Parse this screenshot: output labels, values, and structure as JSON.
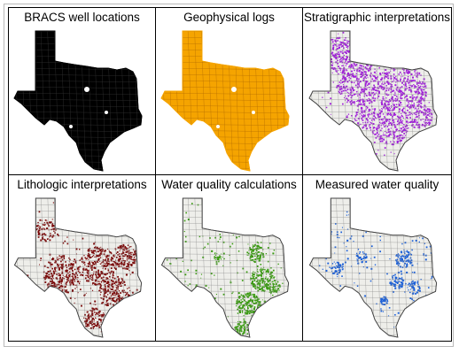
{
  "panels": [
    {
      "title": "BRACS well locations",
      "color": "#000000",
      "fill": "#000000",
      "density": "full"
    },
    {
      "title": "Geophysical logs",
      "color": "#f5a400",
      "fill": "#f5a400",
      "density": "full"
    },
    {
      "title": "Stratigraphic interpretations",
      "color": "#a020d8",
      "fill": "#a020d8",
      "density": "high"
    },
    {
      "title": "Lithologic interpretations",
      "color": "#7a0a0a",
      "fill": "#7a0a0a",
      "density": "medium"
    },
    {
      "title": "Water quality calculations",
      "color": "#3a9a12",
      "fill": "#3a9a12",
      "density": "low"
    },
    {
      "title": "Measured water quality",
      "color": "#1a5fd8",
      "fill": "#1a5fd8",
      "density": "sparse"
    }
  ]
}
